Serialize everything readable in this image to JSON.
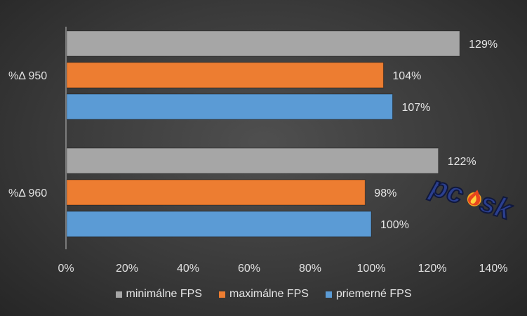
{
  "chart_data": {
    "type": "bar",
    "orientation": "horizontal",
    "categories": [
      "%Δ 950",
      "%Δ 960"
    ],
    "series": [
      {
        "name": "minimálne FPS",
        "color": "#a6a6a6",
        "values": [
          1.29,
          1.22
        ],
        "labels": [
          "129%",
          "122%"
        ]
      },
      {
        "name": "maximálne FPS",
        "color": "#ed7d31",
        "values": [
          1.04,
          0.98
        ],
        "labels": [
          "104%",
          "98%"
        ]
      },
      {
        "name": "priemerné FPS",
        "color": "#5b9bd5",
        "values": [
          1.07,
          1.0
        ],
        "labels": [
          "107%",
          "100%"
        ]
      }
    ],
    "xlim": [
      0,
      1.4
    ],
    "xticks": [
      0,
      0.2,
      0.4,
      0.6,
      0.8,
      1.0,
      1.2,
      1.4
    ],
    "xtick_labels": [
      "0%",
      "20%",
      "40%",
      "60%",
      "80%",
      "100%",
      "120%",
      "140%"
    ],
    "grid": false,
    "legend_position": "bottom"
  },
  "watermark": {
    "text": "pc•sk",
    "icon": "flame-icon"
  }
}
